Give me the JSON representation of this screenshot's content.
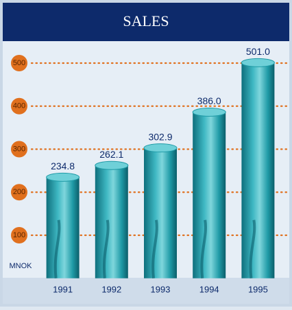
{
  "chart_data": {
    "type": "bar",
    "title": "SALES",
    "unit": "MNOK",
    "categories": [
      "1991",
      "1992",
      "1993",
      "1994",
      "1995"
    ],
    "values": [
      234.8,
      262.1,
      302.9,
      386.0,
      501.0
    ],
    "value_labels": [
      "234.8",
      "262.1",
      "302.9",
      "386.0",
      "501.0"
    ],
    "color": "#1f9aa6",
    "ylim": [
      0,
      500
    ],
    "yticks": [
      100,
      200,
      300,
      400,
      500
    ],
    "grid": true
  }
}
